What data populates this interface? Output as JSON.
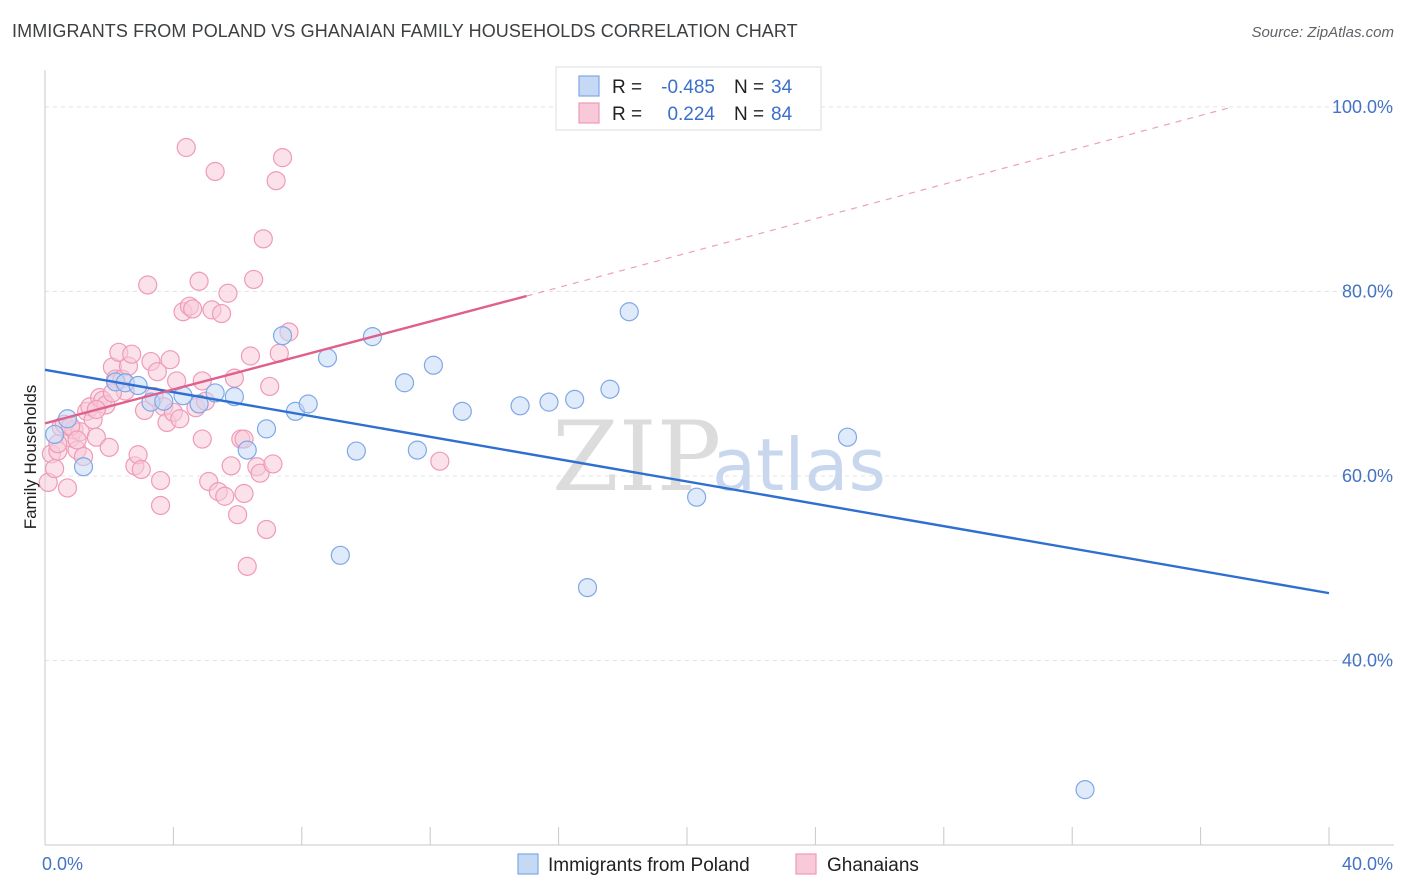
{
  "title": "IMMIGRANTS FROM POLAND VS GHANAIAN FAMILY HOUSEHOLDS CORRELATION CHART",
  "source": "Source: ZipAtlas.com",
  "watermark": {
    "zip": "ZIP",
    "atlas": "atlas"
  },
  "legend_top": {
    "r_label": "R =",
    "n_label": "N =",
    "rows": [
      {
        "series": "Immigrants from Poland",
        "r": "-0.485",
        "n": "34"
      },
      {
        "series": "Ghanaians",
        "r": "0.224",
        "n": "84"
      }
    ]
  },
  "chart_data": {
    "type": "scatter",
    "title": "IMMIGRANTS FROM POLAND VS GHANAIAN FAMILY HOUSEHOLDS CORRELATION CHART",
    "xlabel": "",
    "ylabel": "Family Households",
    "xlim": [
      0,
      40
    ],
    "ylim": [
      20,
      104
    ],
    "x_tick_labels": [
      {
        "value": 0,
        "label": "0.0%"
      },
      {
        "value": 40,
        "label": "40.0%"
      }
    ],
    "y_tick_labels": [
      {
        "value": 100,
        "label": "100.0%"
      },
      {
        "value": 80,
        "label": "80.0%"
      },
      {
        "value": 60,
        "label": "60.0%"
      },
      {
        "value": 40,
        "label": "40.0%"
      }
    ],
    "grid": true,
    "legend_position": "bottom",
    "series": [
      {
        "name": "Immigrants from Poland",
        "color": "#7fa8e6",
        "fill": "#c5d9f5",
        "line_color": "#2f6fd0",
        "trend": {
          "x": [
            0,
            40
          ],
          "y": [
            71.5,
            47.3
          ],
          "dashed_extension": false
        },
        "points": [
          [
            0.3,
            64.5
          ],
          [
            0.7,
            66.2
          ],
          [
            1.2,
            61.0
          ],
          [
            2.2,
            70.2
          ],
          [
            2.5,
            70.1
          ],
          [
            2.9,
            69.8
          ],
          [
            3.3,
            68.0
          ],
          [
            3.7,
            68.1
          ],
          [
            4.3,
            68.7
          ],
          [
            4.8,
            67.8
          ],
          [
            5.3,
            69.0
          ],
          [
            5.9,
            68.6
          ],
          [
            6.3,
            62.8
          ],
          [
            6.9,
            65.1
          ],
          [
            7.4,
            75.2
          ],
          [
            7.8,
            67.0
          ],
          [
            8.2,
            67.8
          ],
          [
            8.8,
            72.8
          ],
          [
            9.2,
            51.4
          ],
          [
            9.7,
            62.7
          ],
          [
            10.2,
            75.1
          ],
          [
            11.2,
            70.1
          ],
          [
            11.6,
            62.8
          ],
          [
            12.1,
            72.0
          ],
          [
            13.0,
            67.0
          ],
          [
            14.8,
            67.6
          ],
          [
            15.7,
            68.0
          ],
          [
            16.5,
            68.3
          ],
          [
            16.9,
            47.9
          ],
          [
            17.6,
            69.4
          ],
          [
            18.2,
            77.8
          ],
          [
            20.3,
            57.7
          ],
          [
            25.0,
            64.2
          ],
          [
            32.4,
            26.0
          ]
        ]
      },
      {
        "name": "Ghanaians",
        "color": "#ef9ab8",
        "fill": "#f8cad9",
        "line_color": "#e0608d",
        "trend": {
          "x": [
            0,
            15
          ],
          "y": [
            65.7,
            79.5
          ],
          "dashed_extension": true,
          "dashed_to": [
            37,
            100
          ]
        },
        "points": [
          [
            0.1,
            59.3
          ],
          [
            0.2,
            62.4
          ],
          [
            0.3,
            60.8
          ],
          [
            0.4,
            62.7
          ],
          [
            0.5,
            65.3
          ],
          [
            0.6,
            65.6
          ],
          [
            0.7,
            58.7
          ],
          [
            0.8,
            64.1
          ],
          [
            0.9,
            65.0
          ],
          [
            1.0,
            62.8
          ],
          [
            1.1,
            64.8
          ],
          [
            1.2,
            62.1
          ],
          [
            1.3,
            67.0
          ],
          [
            1.4,
            67.5
          ],
          [
            1.5,
            66.1
          ],
          [
            1.6,
            64.2
          ],
          [
            1.7,
            68.5
          ],
          [
            1.8,
            68.2
          ],
          [
            1.9,
            67.7
          ],
          [
            2.0,
            63.1
          ],
          [
            2.1,
            71.8
          ],
          [
            2.2,
            70.5
          ],
          [
            2.3,
            73.4
          ],
          [
            2.4,
            70.5
          ],
          [
            2.5,
            69.2
          ],
          [
            2.6,
            71.9
          ],
          [
            2.7,
            73.2
          ],
          [
            2.8,
            61.1
          ],
          [
            2.9,
            62.3
          ],
          [
            3.0,
            60.7
          ],
          [
            3.1,
            67.1
          ],
          [
            3.2,
            80.7
          ],
          [
            3.3,
            72.4
          ],
          [
            3.4,
            68.6
          ],
          [
            3.5,
            71.3
          ],
          [
            3.6,
            56.8
          ],
          [
            3.7,
            67.5
          ],
          [
            3.8,
            65.8
          ],
          [
            3.9,
            72.6
          ],
          [
            4.0,
            66.9
          ],
          [
            4.1,
            70.3
          ],
          [
            4.2,
            66.2
          ],
          [
            4.3,
            77.8
          ],
          [
            4.4,
            95.6
          ],
          [
            4.5,
            78.4
          ],
          [
            4.6,
            78.1
          ],
          [
            4.7,
            67.4
          ],
          [
            4.8,
            81.1
          ],
          [
            4.9,
            70.3
          ],
          [
            5.0,
            68.1
          ],
          [
            5.1,
            59.4
          ],
          [
            5.2,
            78.0
          ],
          [
            5.3,
            93.0
          ],
          [
            5.4,
            58.3
          ],
          [
            5.5,
            77.6
          ],
          [
            5.6,
            57.8
          ],
          [
            5.7,
            79.8
          ],
          [
            5.8,
            61.1
          ],
          [
            5.9,
            70.6
          ],
          [
            6.0,
            55.8
          ],
          [
            6.1,
            64.0
          ],
          [
            6.2,
            58.1
          ],
          [
            6.3,
            50.2
          ],
          [
            6.4,
            73.0
          ],
          [
            6.5,
            81.3
          ],
          [
            6.6,
            61.0
          ],
          [
            6.7,
            60.3
          ],
          [
            6.8,
            85.7
          ],
          [
            6.9,
            54.2
          ],
          [
            7.0,
            69.7
          ],
          [
            7.1,
            61.3
          ],
          [
            7.2,
            92.0
          ],
          [
            7.3,
            73.3
          ],
          [
            7.4,
            94.5
          ],
          [
            7.6,
            75.6
          ],
          [
            12.3,
            61.6
          ],
          [
            0.4,
            63.5
          ],
          [
            0.8,
            65.4
          ],
          [
            1.0,
            63.9
          ],
          [
            1.6,
            67.2
          ],
          [
            2.1,
            69.0
          ],
          [
            3.6,
            59.5
          ],
          [
            4.9,
            64.0
          ],
          [
            6.2,
            64.0
          ]
        ]
      }
    ]
  }
}
